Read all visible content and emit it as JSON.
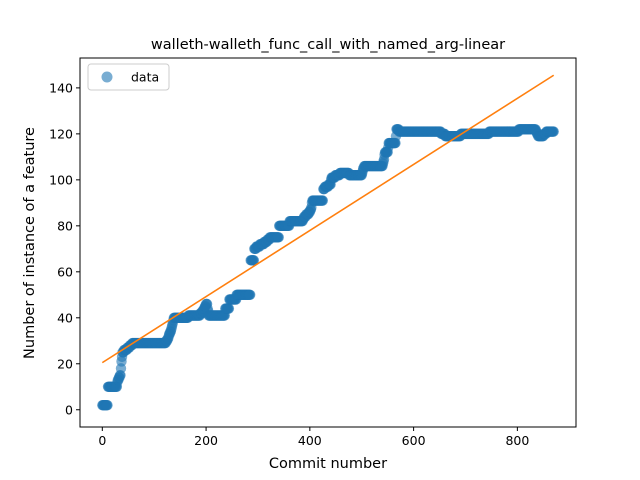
{
  "chart_data": {
    "type": "scatter",
    "title": "walleth-walleth_func_call_with_named_arg-linear",
    "xlabel": "Commit number",
    "ylabel": "Number of instance of a feature",
    "xlim": [
      -43,
      913
    ],
    "ylim": [
      -7.5,
      153
    ],
    "xticks": [
      0,
      200,
      400,
      600,
      800
    ],
    "yticks": [
      0,
      20,
      40,
      60,
      80,
      100,
      120,
      140
    ],
    "legend": {
      "position": "top-left",
      "entries": [
        {
          "label": "data",
          "marker": "circle",
          "color": "#1f77b4"
        }
      ]
    },
    "colors": {
      "data": "#1f77b4",
      "fit": "#ff7f0e"
    },
    "grid": false,
    "series": [
      {
        "name": "data",
        "kind": "scatter",
        "step_points": [
          [
            0,
            2
          ],
          [
            10,
            2
          ],
          [
            11,
            10
          ],
          [
            28,
            10
          ],
          [
            29,
            12
          ],
          [
            32,
            14
          ],
          [
            35,
            15
          ],
          [
            37,
            21
          ],
          [
            39,
            25
          ],
          [
            45,
            26
          ],
          [
            50,
            27
          ],
          [
            55,
            28
          ],
          [
            60,
            29
          ],
          [
            120,
            29
          ],
          [
            125,
            30
          ],
          [
            128,
            32
          ],
          [
            132,
            34
          ],
          [
            135,
            37
          ],
          [
            138,
            40
          ],
          [
            150,
            40
          ],
          [
            152,
            40
          ],
          [
            165,
            40
          ],
          [
            166,
            41
          ],
          [
            188,
            41
          ],
          [
            190,
            42
          ],
          [
            195,
            43
          ],
          [
            198,
            45
          ],
          [
            202,
            46
          ],
          [
            205,
            41
          ],
          [
            236,
            41
          ],
          [
            237,
            44
          ],
          [
            244,
            44
          ],
          [
            245,
            48
          ],
          [
            258,
            48
          ],
          [
            259,
            50
          ],
          [
            285,
            50
          ],
          [
            286,
            65
          ],
          [
            292,
            65
          ],
          [
            293,
            70
          ],
          [
            300,
            71
          ],
          [
            308,
            72
          ],
          [
            315,
            73
          ],
          [
            320,
            74
          ],
          [
            325,
            75
          ],
          [
            340,
            75
          ],
          [
            341,
            80
          ],
          [
            360,
            80
          ],
          [
            361,
            82
          ],
          [
            385,
            82
          ],
          [
            390,
            84
          ],
          [
            400,
            86
          ],
          [
            403,
            88
          ],
          [
            405,
            91
          ],
          [
            425,
            91
          ],
          [
            426,
            96
          ],
          [
            432,
            97
          ],
          [
            440,
            98
          ],
          [
            442,
            101
          ],
          [
            455,
            102
          ],
          [
            460,
            103
          ],
          [
            475,
            103
          ],
          [
            476,
            102
          ],
          [
            500,
            102
          ],
          [
            502,
            104
          ],
          [
            505,
            106
          ],
          [
            540,
            106
          ],
          [
            542,
            108
          ],
          [
            545,
            112
          ],
          [
            550,
            112
          ],
          [
            552,
            116
          ],
          [
            565,
            116
          ],
          [
            567,
            122
          ],
          [
            575,
            121
          ],
          [
            650,
            121
          ],
          [
            655,
            120
          ],
          [
            665,
            119
          ],
          [
            690,
            119
          ],
          [
            692,
            120
          ],
          [
            800,
            121
          ],
          [
            805,
            122
          ],
          [
            815,
            122
          ],
          [
            835,
            122
          ],
          [
            840,
            119
          ],
          [
            850,
            119
          ],
          [
            852,
            120
          ],
          [
            860,
            121
          ],
          [
            870,
            121
          ]
        ]
      },
      {
        "name": "fit",
        "kind": "line",
        "x": [
          0,
          870
        ],
        "y": [
          20.5,
          145.5
        ]
      }
    ]
  }
}
